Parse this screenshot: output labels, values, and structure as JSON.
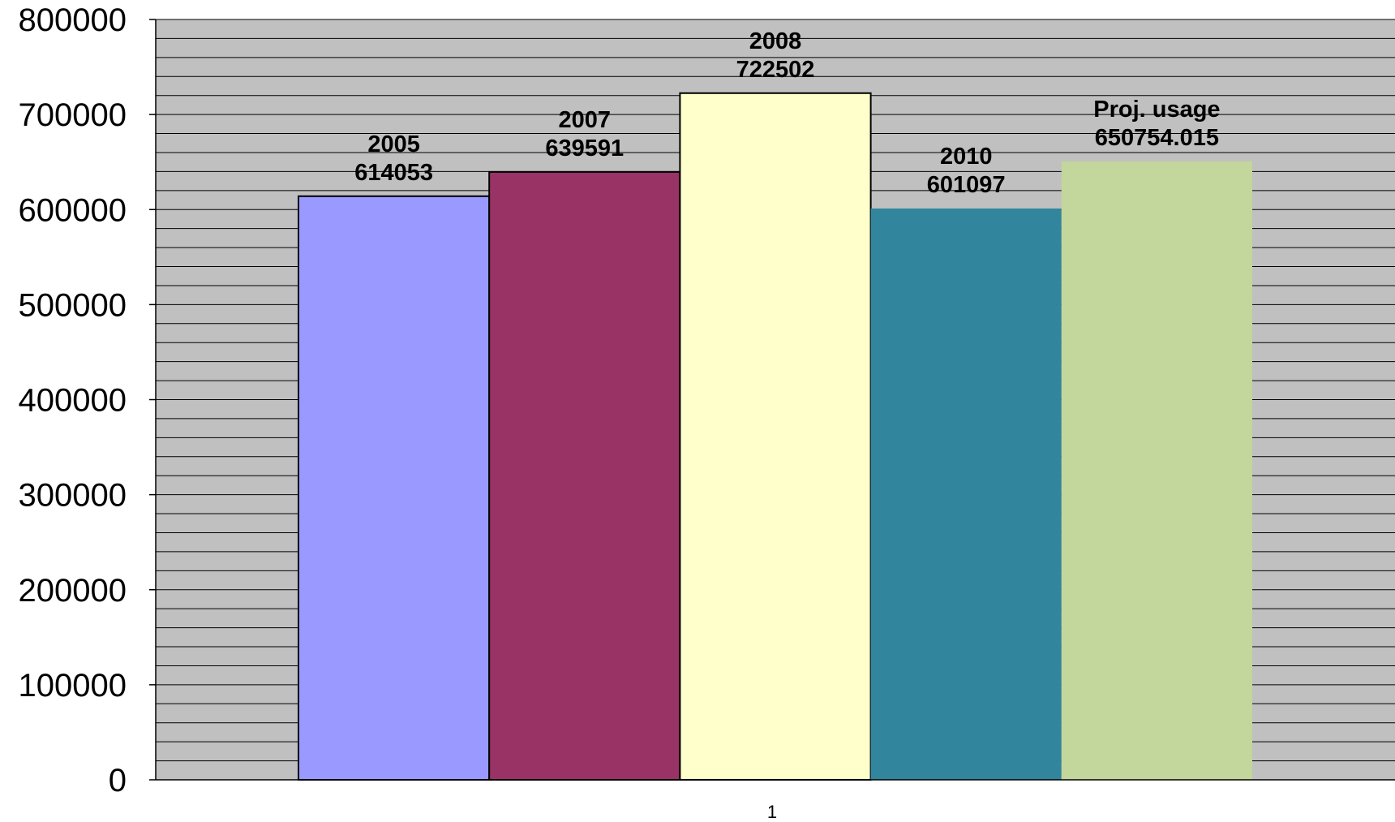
{
  "chart_data": {
    "type": "bar",
    "categories": [
      "1"
    ],
    "series": [
      {
        "name": "2005",
        "values": [
          614053
        ],
        "color": "#9999FF",
        "label_line1": "2005",
        "label_line2": "614053",
        "outlined": true
      },
      {
        "name": "2007",
        "values": [
          639591
        ],
        "color": "#993366",
        "label_line1": "2007",
        "label_line2": "639591",
        "outlined": true
      },
      {
        "name": "2008",
        "values": [
          722502
        ],
        "color": "#FFFFCC",
        "label_line1": "2008",
        "label_line2": "722502",
        "outlined": true
      },
      {
        "name": "2010",
        "values": [
          601097
        ],
        "color": "#31859C",
        "label_line1": "2010",
        "label_line2": "601097",
        "outlined": false
      },
      {
        "name": "Proj. usage",
        "values": [
          650754.015
        ],
        "color": "#C3D69B",
        "label_line1": "Proj. usage",
        "label_line2": "650754.015",
        "outlined": false
      }
    ],
    "title": "",
    "xlabel": "",
    "ylabel": "",
    "ylim": [
      0,
      800000
    ],
    "yticks": [
      "0",
      "100000",
      "200000",
      "300000",
      "400000",
      "500000",
      "600000",
      "700000",
      "800000"
    ],
    "minor_grid_step": 20000,
    "grid": true,
    "legend": "none",
    "plot_background": "#C0C0C0",
    "gridline_color": "#000000"
  }
}
